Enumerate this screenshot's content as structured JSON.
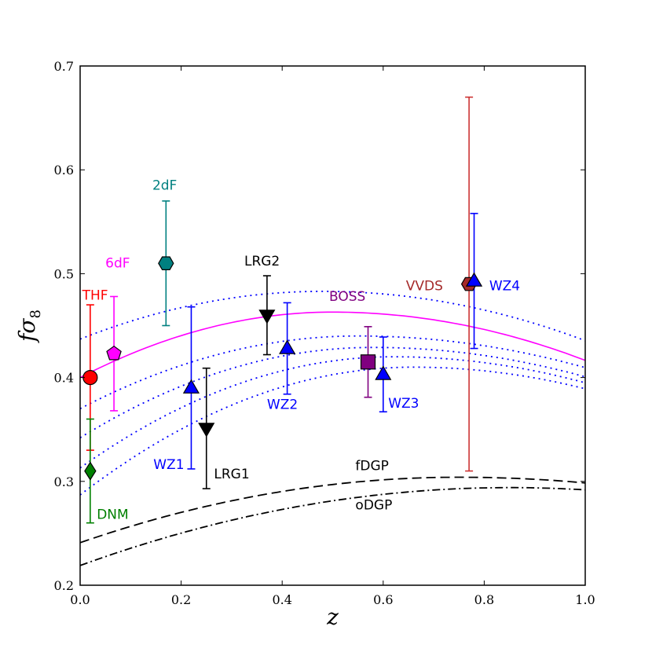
{
  "chart_data": {
    "type": "scatter",
    "title": "",
    "xlabel": "z",
    "ylabel_main": "fσ",
    "ylabel_sub": "8",
    "xlim": [
      0.0,
      1.0
    ],
    "ylim": [
      0.2,
      0.7
    ],
    "xticks": [
      0.0,
      0.2,
      0.4,
      0.6,
      0.8,
      1.0
    ],
    "yticks": [
      0.2,
      0.3,
      0.4,
      0.5,
      0.6,
      0.7
    ],
    "xtick_labels": [
      "0.0",
      "0.2",
      "0.4",
      "0.6",
      "0.8",
      "1.0"
    ],
    "ytick_labels": [
      "0.2",
      "0.3",
      "0.4",
      "0.5",
      "0.6",
      "0.7"
    ],
    "grid": false,
    "points": [
      {
        "name": "THF",
        "label": "THF",
        "x": 0.02,
        "y": 0.4,
        "err": 0.07,
        "marker": "circle",
        "color": "#ff0000",
        "bar_color": "#ff0000",
        "label_x": 0.004,
        "label_y": 0.475
      },
      {
        "name": "6dF",
        "label": "6dF",
        "x": 0.067,
        "y": 0.423,
        "err": 0.055,
        "marker": "pentagon",
        "color": "#ff00ff",
        "bar_color": "#ff00ff",
        "label_x": 0.05,
        "label_y": 0.506
      },
      {
        "name": "2dF",
        "label": "2dF",
        "x": 0.17,
        "y": 0.51,
        "err": 0.06,
        "marker": "hexagon",
        "color": "#008080",
        "bar_color": "#008080",
        "label_x": 0.143,
        "label_y": 0.581
      },
      {
        "name": "DNM",
        "label": "DNM",
        "x": 0.02,
        "y": 0.31,
        "err": 0.05,
        "marker": "diamond",
        "color": "#008000",
        "bar_color": "#008000",
        "label_x": 0.033,
        "label_y": 0.264
      },
      {
        "name": "WZ1",
        "label": "WZ1",
        "x": 0.22,
        "y": 0.39,
        "err": 0.078,
        "marker": "triangle-up",
        "color": "#0000ff",
        "bar_color": "#0000ff",
        "label_x": 0.145,
        "label_y": 0.312
      },
      {
        "name": "LRG1",
        "label": "LRG1",
        "x": 0.25,
        "y": 0.351,
        "err": 0.058,
        "marker": "triangle-down",
        "color": "#000000",
        "bar_color": "#000000",
        "label_x": 0.265,
        "label_y": 0.303
      },
      {
        "name": "LRG2",
        "label": "LRG2",
        "x": 0.37,
        "y": 0.46,
        "err": 0.038,
        "marker": "triangle-down",
        "color": "#000000",
        "bar_color": "#000000",
        "label_x": 0.325,
        "label_y": 0.508
      },
      {
        "name": "WZ2",
        "label": "WZ2",
        "x": 0.41,
        "y": 0.428,
        "err": 0.044,
        "marker": "triangle-up",
        "color": "#0000ff",
        "bar_color": "#0000ff",
        "label_x": 0.37,
        "label_y": 0.37
      },
      {
        "name": "BOSS",
        "label": "BOSS",
        "x": 0.57,
        "y": 0.415,
        "err": 0.034,
        "marker": "square",
        "color": "#800080",
        "bar_color": "#800080",
        "label_x": 0.493,
        "label_y": 0.474
      },
      {
        "name": "WZ3",
        "label": "WZ3",
        "x": 0.6,
        "y": 0.403,
        "err": 0.036,
        "marker": "triangle-up",
        "color": "#0000ff",
        "bar_color": "#0000ff",
        "label_x": 0.61,
        "label_y": 0.371
      },
      {
        "name": "VVDS",
        "label": "VVDS",
        "x": 0.77,
        "y": 0.49,
        "err": 0.18,
        "marker": "hexagon",
        "color": "#a52a2a",
        "bar_color": "#cc3333",
        "label_x": 0.645,
        "label_y": 0.484
      },
      {
        "name": "WZ4",
        "label": "WZ4",
        "x": 0.78,
        "y": 0.493,
        "err": 0.065,
        "marker": "triangle-up",
        "color": "#0000ff",
        "bar_color": "#0000ff",
        "label_x": 0.81,
        "label_y": 0.484
      }
    ],
    "curves": [
      {
        "name": "LCDM",
        "style": "solid",
        "color": "#ff00ff",
        "y0": 0.4,
        "ypeak": 0.463,
        "xpeak": 0.5,
        "yend": 0.433
      },
      {
        "name": "dotted-1",
        "style": "dotted",
        "color": "#0000ff",
        "y0": 0.437,
        "ypeak": 0.483,
        "xpeak": 0.48,
        "yend": 0.442
      },
      {
        "name": "dotted-2",
        "style": "dotted",
        "color": "#0000ff",
        "y0": 0.37,
        "ypeak": 0.44,
        "xpeak": 0.55,
        "yend": 0.426
      },
      {
        "name": "dotted-3",
        "style": "dotted",
        "color": "#0000ff",
        "y0": 0.342,
        "ypeak": 0.429,
        "xpeak": 0.58,
        "yend": 0.418
      },
      {
        "name": "dotted-4",
        "style": "dotted",
        "color": "#0000ff",
        "y0": 0.313,
        "ypeak": 0.42,
        "xpeak": 0.62,
        "yend": 0.41
      },
      {
        "name": "dotted-5",
        "style": "dotted",
        "color": "#0000ff",
        "y0": 0.287,
        "ypeak": 0.41,
        "xpeak": 0.66,
        "yend": 0.401
      },
      {
        "name": "fDGP",
        "label": "fDGP",
        "style": "dashed",
        "color": "#000000",
        "y0": 0.241,
        "ypeak": 0.304,
        "xpeak": 0.75,
        "yend": 0.3,
        "label_x": 0.545,
        "label_y": 0.311
      },
      {
        "name": "oDGP",
        "label": "oDGP",
        "style": "dashdot",
        "color": "#000000",
        "y0": 0.219,
        "ypeak": 0.294,
        "xpeak": 0.85,
        "yend": 0.292,
        "label_x": 0.545,
        "label_y": 0.273
      }
    ]
  }
}
